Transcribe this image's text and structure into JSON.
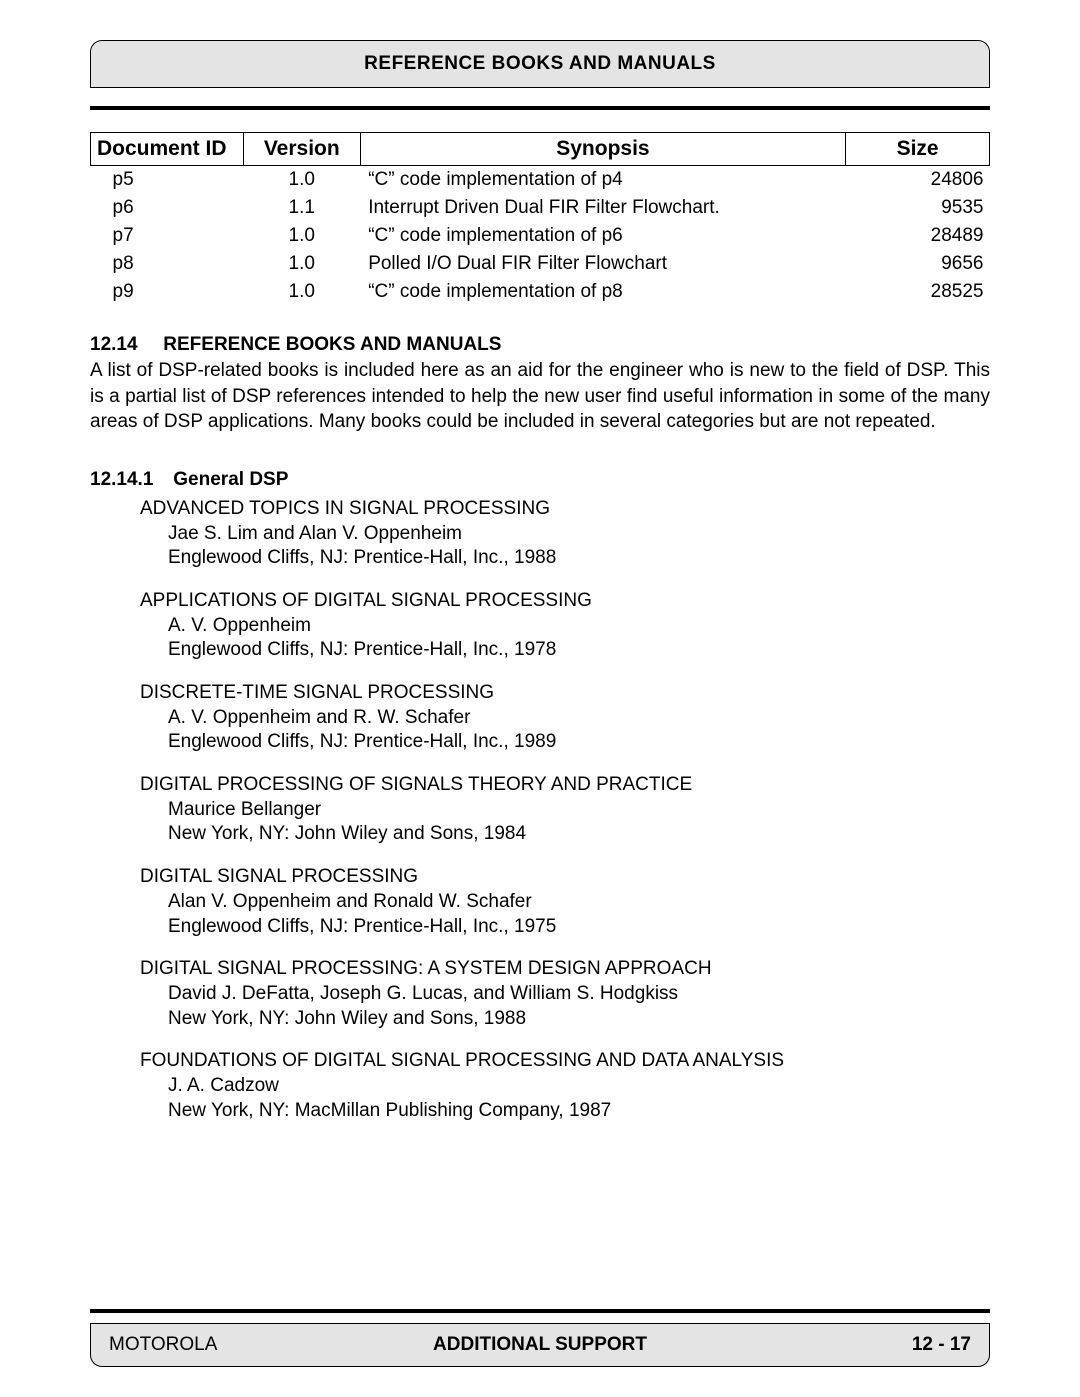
{
  "header": {
    "title": "REFERENCE BOOKS AND MANUALS"
  },
  "table": {
    "columns": [
      "Document ID",
      "Version",
      "Synopsis",
      "Size"
    ],
    "rows": [
      {
        "id": "p5",
        "version": "1.0",
        "synopsis": "“C” code implementation of p4",
        "size": "24806"
      },
      {
        "id": "p6",
        "version": "1.1",
        "synopsis": "Interrupt Driven Dual FIR Filter Flowchart.",
        "size": "9535"
      },
      {
        "id": "p7",
        "version": "1.0",
        "synopsis": "“C” code implementation of p6",
        "size": "28489"
      },
      {
        "id": "p8",
        "version": "1.0",
        "synopsis": "Polled I/O Dual FIR Filter Flowchart",
        "size": "9656"
      },
      {
        "id": "p9",
        "version": "1.0",
        "synopsis": "“C” code implementation of p8",
        "size": "28525"
      }
    ]
  },
  "section": {
    "number": "12.14",
    "title": "REFERENCE BOOKS AND MANUALS",
    "body": "A list of DSP-related books is included here as an aid for the engineer who is new to the field of DSP. This is a partial list of DSP references intended to help the new user find useful information in some of the many areas of DSP applications. Many books could be included in several categories but are not repeated."
  },
  "subsection": {
    "number": "12.14.1",
    "title": "General DSP"
  },
  "books": [
    {
      "title": "ADVANCED TOPICS IN SIGNAL PROCESSING",
      "author": "Jae S. Lim and Alan V. Oppenheim",
      "pub": "Englewood Cliffs, NJ: Prentice-Hall, Inc., 1988"
    },
    {
      "title": "APPLICATIONS OF DIGITAL SIGNAL PROCESSING",
      "author": "A. V. Oppenheim",
      "pub": "Englewood Cliffs, NJ: Prentice-Hall, Inc., 1978"
    },
    {
      "title": "DISCRETE-TIME SIGNAL PROCESSING",
      "author": "A. V. Oppenheim and R. W. Schafer",
      "pub": "Englewood Cliffs, NJ: Prentice-Hall, Inc., 1989"
    },
    {
      "title": "DIGITAL PROCESSING OF SIGNALS THEORY AND PRACTICE",
      "author": "Maurice Bellanger",
      "pub": "New York, NY: John Wiley and Sons, 1984"
    },
    {
      "title": "DIGITAL SIGNAL PROCESSING",
      "author": "Alan V. Oppenheim and Ronald W. Schafer",
      "pub": "Englewood Cliffs, NJ: Prentice-Hall, Inc., 1975"
    },
    {
      "title": "DIGITAL SIGNAL PROCESSING: A SYSTEM DESIGN APPROACH",
      "author": "David J. DeFatta, Joseph G. Lucas, and William S. Hodgkiss",
      "pub": "New York, NY: John Wiley and Sons, 1988"
    },
    {
      "title": "FOUNDATIONS OF DIGITAL SIGNAL PROCESSING AND DATA ANALYSIS",
      "author": "J. A. Cadzow",
      "pub": "New York, NY: MacMillan Publishing Company, 1987"
    }
  ],
  "footer": {
    "left": "MOTOROLA",
    "center": "ADDITIONAL SUPPORT",
    "right": "12 - 17"
  },
  "colors": {
    "header_bg": "#e4e4e4",
    "text": "#000000",
    "rule": "#000000",
    "page_bg": "#ffffff"
  }
}
